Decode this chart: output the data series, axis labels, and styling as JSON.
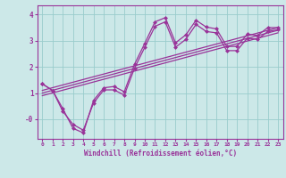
{
  "xlabel": "Windchill (Refroidissement éolien,°C)",
  "background_color": "#cce8e8",
  "line_color": "#993399",
  "grid_color": "#99cccc",
  "xlim": [
    -0.5,
    23.5
  ],
  "ylim": [
    -0.75,
    4.35
  ],
  "yticks": [
    0,
    1,
    2,
    3,
    4
  ],
  "ytick_labels": [
    "-0",
    "1",
    "2",
    "3",
    "4"
  ],
  "xticks": [
    0,
    1,
    2,
    3,
    4,
    5,
    6,
    7,
    8,
    9,
    10,
    11,
    12,
    13,
    14,
    15,
    16,
    17,
    18,
    19,
    20,
    21,
    22,
    23
  ],
  "line1_x": [
    0,
    1,
    2,
    3,
    4,
    5,
    6,
    7,
    8,
    9,
    10,
    11,
    12,
    13,
    14,
    15,
    16,
    17,
    18,
    19,
    20,
    21,
    22,
    23
  ],
  "line1_y": [
    1.35,
    1.1,
    0.4,
    -0.35,
    -0.52,
    0.72,
    1.2,
    1.25,
    1.05,
    2.1,
    2.9,
    3.72,
    3.88,
    2.92,
    3.22,
    3.78,
    3.52,
    3.45,
    2.78,
    2.78,
    3.25,
    3.2,
    3.5,
    3.5
  ],
  "line2_x": [
    0,
    1,
    2,
    3,
    4,
    5,
    6,
    7,
    8,
    9,
    10,
    11,
    12,
    13,
    14,
    15,
    16,
    17,
    18,
    19,
    20,
    21,
    22,
    23
  ],
  "line2_y": [
    1.35,
    1.1,
    0.3,
    -0.2,
    -0.42,
    0.62,
    1.12,
    1.12,
    0.92,
    1.95,
    2.75,
    3.55,
    3.72,
    2.75,
    3.05,
    3.62,
    3.35,
    3.3,
    2.62,
    2.62,
    3.1,
    3.05,
    3.35,
    3.42
  ],
  "line3_x": [
    0,
    23
  ],
  "line3_y": [
    1.1,
    3.5
  ],
  "line4_x": [
    0,
    23
  ],
  "line4_y": [
    1.0,
    3.4
  ],
  "line5_x": [
    0,
    23
  ],
  "line5_y": [
    0.9,
    3.3
  ]
}
